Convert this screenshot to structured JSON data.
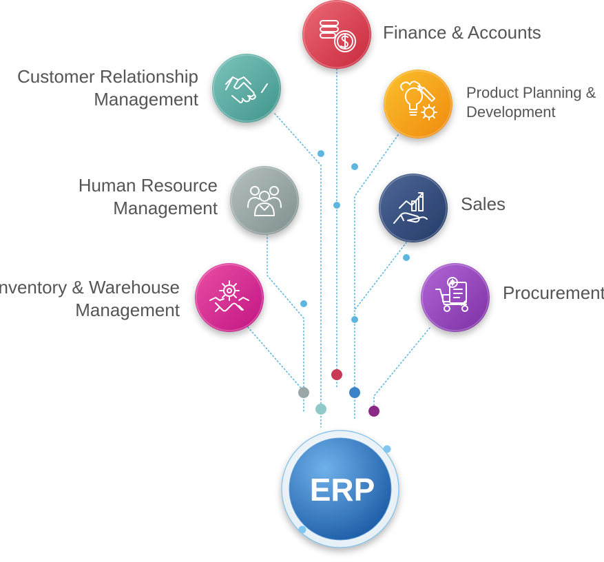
{
  "center": {
    "label": "ERP"
  },
  "modules": [
    {
      "id": "finance",
      "lines": [
        "Finance & Accounts"
      ],
      "icon": "coins-dollar-icon",
      "colors": [
        "#ec6a75",
        "#c8283c"
      ]
    },
    {
      "id": "crm",
      "lines": [
        "Customer Relationship",
        "Management"
      ],
      "icon": "handshake-icon",
      "colors": [
        "#7cc4bb",
        "#3f948b"
      ]
    },
    {
      "id": "product",
      "lines": [
        "Product Planning &",
        "Development"
      ],
      "icon": "lightbulb-gear-icon",
      "colors": [
        "#fbc02d",
        "#ef8a0f"
      ]
    },
    {
      "id": "hr",
      "lines": [
        "Human Resource",
        "Management"
      ],
      "icon": "people-group-icon",
      "colors": [
        "#b6c1c1",
        "#7f8e8e"
      ]
    },
    {
      "id": "sales",
      "lines": [
        "Sales"
      ],
      "icon": "growth-chart-hand-icon",
      "colors": [
        "#4e6796",
        "#243b68"
      ]
    },
    {
      "id": "inventory",
      "lines": [
        "Inventory & Warehouse",
        "Management"
      ],
      "icon": "hands-gear-icon",
      "colors": [
        "#ea4fa4",
        "#c01483"
      ]
    },
    {
      "id": "procurement",
      "lines": [
        "Procurement"
      ],
      "icon": "trolley-invoice-icon",
      "colors": [
        "#b267d6",
        "#7c2fa4"
      ]
    }
  ],
  "colors": {
    "text": "#555555",
    "dotted_line": "#5cb6e0",
    "erp_blue": "#2c6fb4",
    "erp_ring": "#7fbfe9"
  }
}
